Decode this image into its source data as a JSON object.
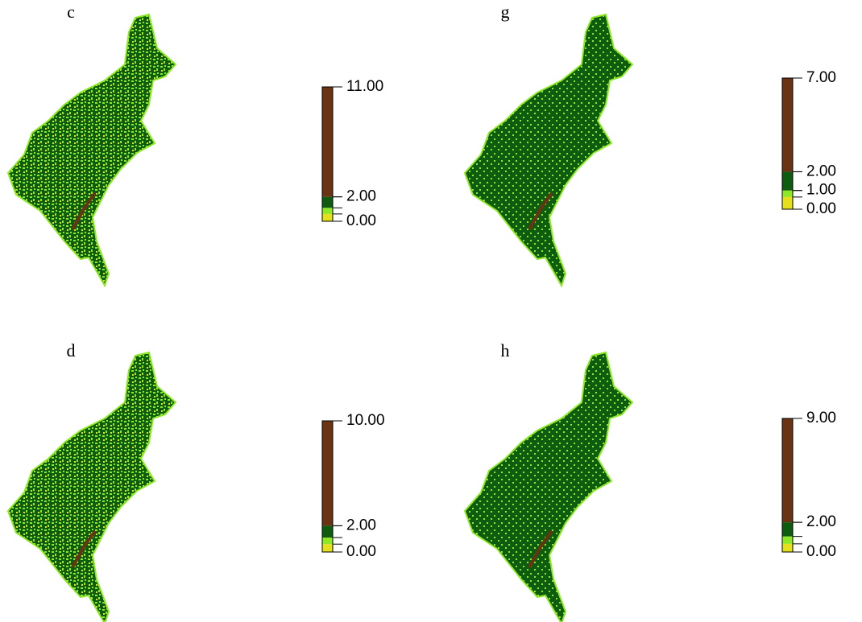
{
  "colors": [
    "#e4e01c",
    "#8ee826",
    "#0e5c10",
    "#6a3414"
  ],
  "panels": [
    {
      "label": "c",
      "breaks": [
        0,
        0.6,
        1.1,
        2,
        11
      ],
      "ticks": [
        {
          "value": 0,
          "label": "0.00"
        },
        {
          "value": 2,
          "label": "2.00"
        },
        {
          "value": 11,
          "label": "11.00"
        }
      ]
    },
    {
      "label": "g",
      "breaks": [
        0,
        0.65,
        1,
        2,
        7
      ],
      "ticks": [
        {
          "value": 0,
          "label": "0.00"
        },
        {
          "value": 1,
          "label": "1.00"
        },
        {
          "value": 2,
          "label": "2.00"
        },
        {
          "value": 7,
          "label": "7.00"
        }
      ]
    },
    {
      "label": "d",
      "breaks": [
        0,
        0.6,
        1.1,
        2,
        10
      ],
      "ticks": [
        {
          "value": 0,
          "label": "0.00"
        },
        {
          "value": 2,
          "label": "2.00"
        },
        {
          "value": 10,
          "label": "10.00"
        }
      ]
    },
    {
      "label": "h",
      "breaks": [
        0,
        0.55,
        1.05,
        2,
        9
      ],
      "ticks": [
        {
          "value": 0,
          "label": "0.00"
        },
        {
          "value": 2,
          "label": "2.00"
        },
        {
          "value": 9,
          "label": "9.00"
        }
      ]
    }
  ]
}
